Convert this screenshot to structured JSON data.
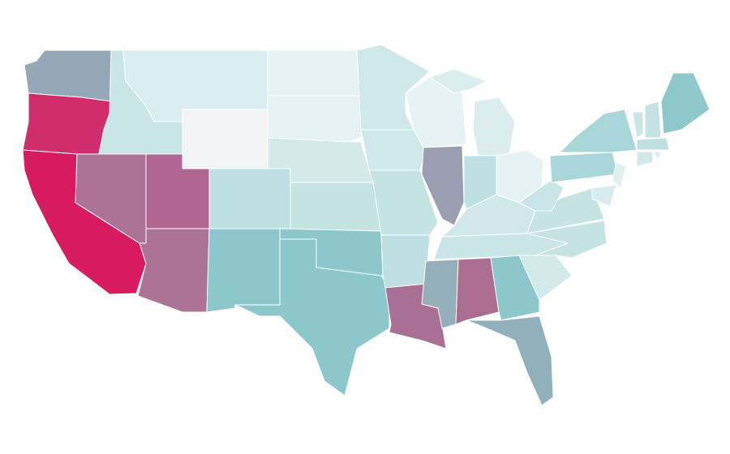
{
  "map": {
    "type": "choropleth",
    "stroke": "#ffffff",
    "regions": [
      {
        "color": "#95a8b8"
      },
      {
        "color": "#cf2d6c"
      },
      {
        "color": "#d81b60"
      },
      {
        "color": "#c9e5e6"
      },
      {
        "color": "#d8eef0"
      },
      {
        "color": "#f2f4f5"
      },
      {
        "color": "#ac7396"
      },
      {
        "color": "#b06690"
      },
      {
        "color": "#ac7396"
      },
      {
        "color": "#bfe0e2"
      },
      {
        "color": "#8cc8cb"
      },
      {
        "color": "#e5f3f4"
      },
      {
        "color": "#e5f3f4"
      },
      {
        "color": "#d3eaeb"
      },
      {
        "color": "#c6e3e4"
      },
      {
        "color": "#8cc8cb"
      },
      {
        "color": "#8cc8cb"
      },
      {
        "color": "#cfe8ea"
      },
      {
        "color": "#cfe8ea"
      },
      {
        "color": "#c6e3e4"
      },
      {
        "color": "#bfe0e2"
      },
      {
        "color": "#a96f95"
      },
      {
        "color": "#e6f3f4"
      },
      {
        "color": "#9b9eb0"
      },
      {
        "color": "#dcedef"
      },
      {
        "color": "#dcedef"
      },
      {
        "color": "#bfe0e2"
      },
      {
        "color": "#e6f3f4"
      },
      {
        "color": "#d0e8ea"
      },
      {
        "color": "#cae5e7"
      },
      {
        "color": "#95afb9"
      },
      {
        "color": "#ab6e91"
      },
      {
        "color": "#8cc8cb"
      },
      {
        "color": "#90b0bc"
      },
      {
        "color": "#d3eaeb"
      },
      {
        "color": "#c6e3e4"
      },
      {
        "color": "#c6e3e4"
      },
      {
        "color": "#cae5e7"
      },
      {
        "color": "#a9d7d9"
      },
      {
        "color": "#a9d7d9"
      },
      {
        "color": "#e0f0f1"
      },
      {
        "color": "#d6ecee"
      },
      {
        "color": "#c9e5e6"
      },
      {
        "color": "#c6e3e4"
      },
      {
        "color": "#bfe0e2"
      },
      {
        "color": "#d0e8ea"
      },
      {
        "color": "#d6ecee"
      },
      {
        "color": "#8ec7cc"
      }
    ]
  }
}
